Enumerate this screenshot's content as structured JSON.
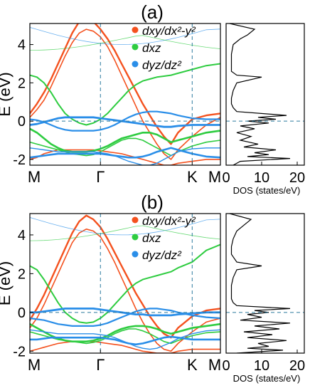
{
  "colors": {
    "dxy": "#f4511e",
    "dxz": "#2ecc40",
    "dyz": "#2a8ee8",
    "dashed": "#2b7a9e",
    "dos": "#000000"
  },
  "chart_data": [
    {
      "panel": "(a)",
      "type": "line",
      "ylabel": "E (eV)",
      "ylim": [
        -2.3,
        5.1
      ],
      "yticks": [
        -2,
        0,
        2,
        4
      ],
      "xticks": [
        "M",
        "Γ",
        "K",
        "M"
      ],
      "legend": [
        {
          "label": "dxy/dx²-y²",
          "color": "#f4511e"
        },
        {
          "label": "dxz",
          "color": "#2ecc40"
        },
        {
          "label": "dyz/dz²",
          "color": "#2a8ee8"
        }
      ],
      "x": [
        0,
        0.1,
        0.2,
        0.3,
        0.4,
        0.5,
        0.6,
        0.7,
        0.8,
        0.9,
        1.0,
        1.1,
        1.2,
        1.3,
        1.4,
        1.5,
        1.6,
        1.7,
        1.8,
        1.9,
        2.0,
        2.1,
        2.3,
        2.5,
        2.7
      ],
      "series": [
        {
          "color": "#f4511e",
          "width": 2.4,
          "values": [
            0.4,
            0.9,
            1.5,
            2.2,
            3.0,
            3.8,
            4.6,
            5.2,
            5.4,
            5.2,
            4.8,
            4.3,
            3.7,
            3.0,
            2.3,
            1.6,
            0.9,
            0.3,
            -0.3,
            -0.8,
            -1.2,
            -0.6,
            0.1,
            0.3,
            0.4
          ]
        },
        {
          "color": "#f4511e",
          "width": 1.6,
          "values": [
            0.2,
            0.6,
            1.1,
            1.8,
            2.6,
            3.4,
            4.1,
            4.6,
            4.8,
            4.7,
            4.4,
            3.9,
            3.2,
            2.4,
            1.6,
            0.8,
            0.0,
            -0.6,
            -1.2,
            -1.7,
            -2.0,
            -1.5,
            -0.8,
            -0.2,
            0.2
          ]
        },
        {
          "color": "#f4511e",
          "width": 1.6,
          "values": [
            -2.0,
            -1.9,
            -1.7,
            -1.6,
            -1.5,
            -1.5,
            -1.5,
            -1.5,
            -1.5,
            -1.5,
            -1.55,
            -1.6,
            -1.65,
            -1.7,
            -1.8,
            -1.9,
            -2.0,
            -2.1,
            -2.2,
            -2.3,
            -2.3,
            -2.2,
            -2.1,
            -2.0,
            -2.0
          ]
        },
        {
          "color": "#2ecc40",
          "width": 2.0,
          "values": [
            2.4,
            2.3,
            2.0,
            1.5,
            0.9,
            0.4,
            0.1,
            -0.1,
            -0.2,
            -0.1,
            0.1,
            0.4,
            0.8,
            1.2,
            1.6,
            1.9,
            2.1,
            2.2,
            2.3,
            2.35,
            2.4,
            2.5,
            2.7,
            2.9,
            3.0
          ]
        },
        {
          "color": "#2ecc40",
          "width": 2.6,
          "values": [
            -0.4,
            -0.6,
            -0.9,
            -1.2,
            -1.4,
            -1.55,
            -1.6,
            -1.6,
            -1.6,
            -1.55,
            -1.45,
            -1.3,
            -1.1,
            -0.9,
            -0.8,
            -0.7,
            -0.6,
            -0.6,
            -0.7,
            -0.9,
            -1.1,
            -1.0,
            -0.8,
            -0.6,
            -0.5
          ]
        },
        {
          "color": "#2ecc40",
          "width": 1.6,
          "values": [
            -1.1,
            -1.2,
            -1.3,
            -1.4,
            -1.5,
            -1.6,
            -1.7,
            -1.75,
            -1.8,
            -1.75,
            -1.6,
            -1.4,
            -1.2,
            -1.0,
            -0.9,
            -0.9,
            -1.0,
            -1.2,
            -1.4,
            -1.6,
            -1.8,
            -1.6,
            -1.3,
            -1.1,
            -1.0
          ]
        },
        {
          "color": "#2a8ee8",
          "width": 2.8,
          "values": [
            -0.2,
            -0.15,
            -0.05,
            0.05,
            0.15,
            0.2,
            0.2,
            0.2,
            0.2,
            0.2,
            0.15,
            0.1,
            0.05,
            0.0,
            -0.05,
            -0.1,
            -0.15,
            -0.2,
            -0.25,
            -0.3,
            -0.3,
            -0.25,
            -0.2,
            -0.2,
            -0.2
          ]
        },
        {
          "color": "#2a8ee8",
          "width": 2.2,
          "values": [
            0.1,
            0.05,
            -0.05,
            -0.2,
            -0.35,
            -0.45,
            -0.5,
            -0.5,
            -0.5,
            -0.5,
            -0.45,
            -0.35,
            -0.2,
            0.0,
            0.2,
            0.35,
            0.45,
            0.5,
            0.5,
            0.45,
            0.4,
            0.3,
            0.15,
            0.1,
            0.1
          ]
        },
        {
          "color": "#2a8ee8",
          "width": 2.6,
          "values": [
            -1.9,
            -1.85,
            -1.8,
            -1.75,
            -1.7,
            -1.7,
            -1.7,
            -1.7,
            -1.7,
            -1.7,
            -1.7,
            -1.75,
            -1.8,
            -1.85,
            -1.9,
            -1.9,
            -1.85,
            -1.75,
            -1.6,
            -1.5,
            -1.4,
            -1.5,
            -1.7,
            -1.85,
            -1.9
          ]
        },
        {
          "color": "#2a8ee8",
          "width": 1.4,
          "values": [
            -1.4,
            -1.45,
            -1.5,
            -1.55,
            -1.6,
            -1.6,
            -1.6,
            -1.6,
            -1.6,
            -1.6,
            -1.65,
            -1.7,
            -1.8,
            -1.95,
            -2.1,
            -2.2,
            -2.3,
            -2.3,
            -2.2,
            -2.0,
            -1.8,
            -1.6,
            -1.45,
            -1.4,
            -1.4
          ]
        }
      ],
      "dos": {
        "xlim": [
          0,
          22
        ],
        "xticks": [
          0,
          10,
          20
        ],
        "xlabel": "DOS (states/eV)",
        "E": [
          -2.3,
          -2.1,
          -1.95,
          -1.85,
          -1.75,
          -1.65,
          -1.5,
          -1.35,
          -1.2,
          -1.0,
          -0.8,
          -0.6,
          -0.4,
          -0.25,
          -0.1,
          0.0,
          0.1,
          0.2,
          0.3,
          0.5,
          0.7,
          0.9,
          1.2,
          1.6,
          2.0,
          2.3,
          2.4,
          2.6,
          3.0,
          3.5,
          4.0,
          4.3,
          4.5,
          4.8,
          5.1
        ],
        "value": [
          2,
          4,
          18,
          6,
          12,
          8,
          14,
          5,
          9,
          4,
          7,
          3,
          8,
          4,
          12,
          6,
          14,
          9,
          17,
          3,
          2,
          1.5,
          1.5,
          2,
          3,
          10,
          3,
          1.5,
          1.5,
          1.5,
          2,
          4,
          6,
          8,
          1
        ]
      }
    },
    {
      "panel": "(b)",
      "type": "line",
      "ylabel": "E (eV)",
      "ylim": [
        -2.1,
        5.1
      ],
      "yticks": [
        -2,
        0,
        2,
        4
      ],
      "xticks": [
        "M",
        "Γ",
        "K",
        "M"
      ],
      "legend": [
        {
          "label": "dxy/dx²-y²",
          "color": "#f4511e"
        },
        {
          "label": "dxz",
          "color": "#2ecc40"
        },
        {
          "label": "dyz/dz²",
          "color": "#2a8ee8"
        }
      ],
      "x": [
        0,
        0.1,
        0.2,
        0.3,
        0.4,
        0.5,
        0.6,
        0.7,
        0.8,
        0.9,
        1.0,
        1.1,
        1.2,
        1.3,
        1.4,
        1.5,
        1.6,
        1.7,
        1.8,
        1.9,
        2.0,
        2.1,
        2.3,
        2.5,
        2.7
      ],
      "series": [
        {
          "color": "#f4511e",
          "width": 2.4,
          "values": [
            -0.4,
            0.2,
            0.9,
            1.7,
            2.5,
            3.3,
            4.1,
            4.7,
            5.0,
            4.8,
            4.4,
            3.8,
            3.1,
            2.4,
            1.7,
            1.0,
            0.4,
            -0.2,
            -0.7,
            -1.1,
            -1.3,
            -0.8,
            -0.2,
            0.1,
            0.2
          ]
        },
        {
          "color": "#f4511e",
          "width": 1.6,
          "values": [
            -0.8,
            -0.3,
            0.4,
            1.2,
            2.0,
            2.8,
            3.6,
            4.1,
            4.3,
            4.2,
            3.9,
            3.3,
            2.6,
            1.8,
            1.0,
            0.2,
            -0.5,
            -1.1,
            -1.6,
            -1.9,
            -2.0,
            -1.6,
            -1.0,
            -0.5,
            -0.3
          ]
        },
        {
          "color": "#f4511e",
          "width": 1.6,
          "values": [
            -2.0,
            -1.9,
            -1.8,
            -1.7,
            -1.6,
            -1.55,
            -1.5,
            -1.5,
            -1.5,
            -1.5,
            -1.55,
            -1.6,
            -1.65,
            -1.7,
            -1.8,
            -1.9,
            -2.0,
            -2.05,
            -2.1,
            -2.1,
            -2.1,
            -2.0,
            -1.9,
            -1.9,
            -1.9
          ]
        },
        {
          "color": "#2ecc40",
          "width": 2.0,
          "values": [
            2.4,
            2.2,
            1.7,
            1.1,
            0.5,
            0.0,
            -0.3,
            -0.5,
            -0.55,
            -0.5,
            -0.3,
            0.0,
            0.4,
            0.8,
            1.2,
            1.5,
            1.7,
            1.8,
            1.9,
            2.0,
            2.1,
            2.3,
            2.6,
            3.2,
            3.5
          ]
        },
        {
          "color": "#2ecc40",
          "width": 2.6,
          "values": [
            -0.6,
            -0.8,
            -1.0,
            -1.2,
            -1.35,
            -1.45,
            -1.5,
            -1.5,
            -1.5,
            -1.45,
            -1.35,
            -1.2,
            -1.0,
            -0.85,
            -0.75,
            -0.7,
            -0.7,
            -0.75,
            -0.85,
            -1.0,
            -1.1,
            -1.0,
            -0.8,
            -0.7,
            -0.6
          ]
        },
        {
          "color": "#2ecc40",
          "width": 1.6,
          "values": [
            -1.0,
            -1.1,
            -1.2,
            -1.3,
            -1.4,
            -1.45,
            -1.5,
            -1.55,
            -1.6,
            -1.55,
            -1.45,
            -1.3,
            -1.1,
            -0.95,
            -0.85,
            -0.85,
            -0.95,
            -1.1,
            -1.3,
            -1.5,
            -1.6,
            -1.45,
            -1.2,
            -1.05,
            -1.0
          ]
        },
        {
          "color": "#2a8ee8",
          "width": 2.8,
          "values": [
            0.0,
            0.0,
            0.05,
            0.1,
            0.15,
            0.2,
            0.2,
            0.2,
            0.2,
            0.2,
            0.15,
            0.1,
            0.05,
            0.0,
            -0.05,
            -0.1,
            -0.1,
            -0.15,
            -0.15,
            -0.15,
            -0.15,
            -0.1,
            -0.05,
            0.0,
            0.0
          ]
        },
        {
          "color": "#2a8ee8",
          "width": 2.2,
          "values": [
            -0.3,
            -0.35,
            -0.4,
            -0.5,
            -0.6,
            -0.65,
            -0.7,
            -0.7,
            -0.7,
            -0.7,
            -0.65,
            -0.55,
            -0.4,
            -0.25,
            -0.1,
            0.05,
            0.15,
            0.2,
            0.2,
            0.15,
            0.1,
            0.0,
            -0.15,
            -0.25,
            -0.3
          ]
        },
        {
          "color": "#2a8ee8",
          "width": 2.6,
          "values": [
            -1.4,
            -1.4,
            -1.35,
            -1.3,
            -1.3,
            -1.3,
            -1.3,
            -1.3,
            -1.3,
            -1.3,
            -1.3,
            -1.35,
            -1.4,
            -1.5,
            -1.6,
            -1.65,
            -1.6,
            -1.5,
            -1.4,
            -1.3,
            -1.25,
            -1.3,
            -1.4,
            -1.4,
            -1.4
          ]
        },
        {
          "color": "#2a8ee8",
          "width": 1.4,
          "values": [
            -0.9,
            -0.95,
            -1.0,
            -1.05,
            -1.1,
            -1.1,
            -1.1,
            -1.1,
            -1.1,
            -1.1,
            -1.15,
            -1.2,
            -1.3,
            -1.45,
            -1.6,
            -1.75,
            -1.85,
            -1.9,
            -1.85,
            -1.7,
            -1.55,
            -1.35,
            -1.1,
            -0.95,
            -0.9
          ]
        }
      ],
      "dos": {
        "xlim": [
          0,
          22
        ],
        "xticks": [
          0,
          10,
          20
        ],
        "xlabel": "DOS (states/eV)",
        "E": [
          -2.1,
          -1.95,
          -1.85,
          -1.75,
          -1.6,
          -1.45,
          -1.3,
          -1.15,
          -1.0,
          -0.85,
          -0.7,
          -0.55,
          -0.4,
          -0.25,
          -0.1,
          0.0,
          0.1,
          0.2,
          0.35,
          0.5,
          0.7,
          1.0,
          1.4,
          1.8,
          2.2,
          2.4,
          2.6,
          3.0,
          3.4,
          3.8,
          4.2,
          4.5,
          4.8,
          5.1
        ],
        "value": [
          3,
          16,
          6,
          12,
          9,
          17,
          6,
          13,
          5,
          15,
          8,
          18,
          4,
          10,
          6,
          12,
          8,
          18,
          3,
          2,
          1.5,
          1.5,
          1.5,
          2,
          3,
          10,
          3,
          1.5,
          1.5,
          2,
          3,
          5,
          7,
          1
        ]
      }
    }
  ]
}
